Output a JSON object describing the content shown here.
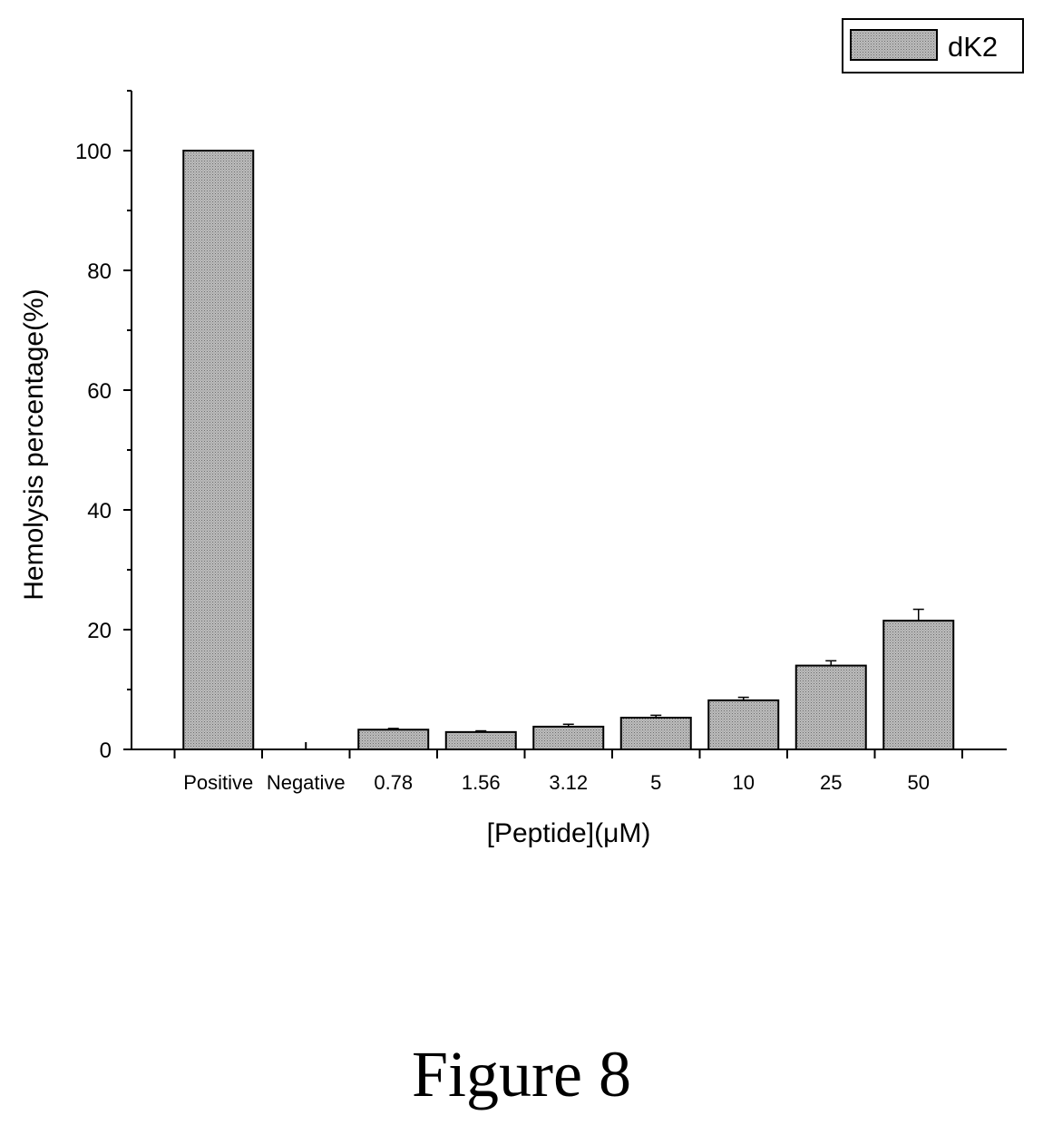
{
  "figure": {
    "caption": "Figure 8"
  },
  "chart_data": {
    "type": "bar",
    "categories": [
      "Positive",
      "Negative",
      "0.78",
      "1.56",
      "3.12",
      "5",
      "10",
      "25",
      "50"
    ],
    "series": [
      {
        "name": "dK2",
        "values": [
          100,
          0,
          3.3,
          2.9,
          3.8,
          5.3,
          8.2,
          14.0,
          21.5
        ],
        "errors": [
          0,
          0,
          0.2,
          0.2,
          0.4,
          0.4,
          0.5,
          0.8,
          1.9
        ]
      }
    ],
    "xlabel": "[Peptide](μM)",
    "ylabel": "Hemolysis percentage(%)",
    "ylim": [
      0,
      110
    ],
    "yticks": [
      0,
      20,
      40,
      60,
      80,
      100
    ],
    "legend": "top-right",
    "grid": false
  }
}
